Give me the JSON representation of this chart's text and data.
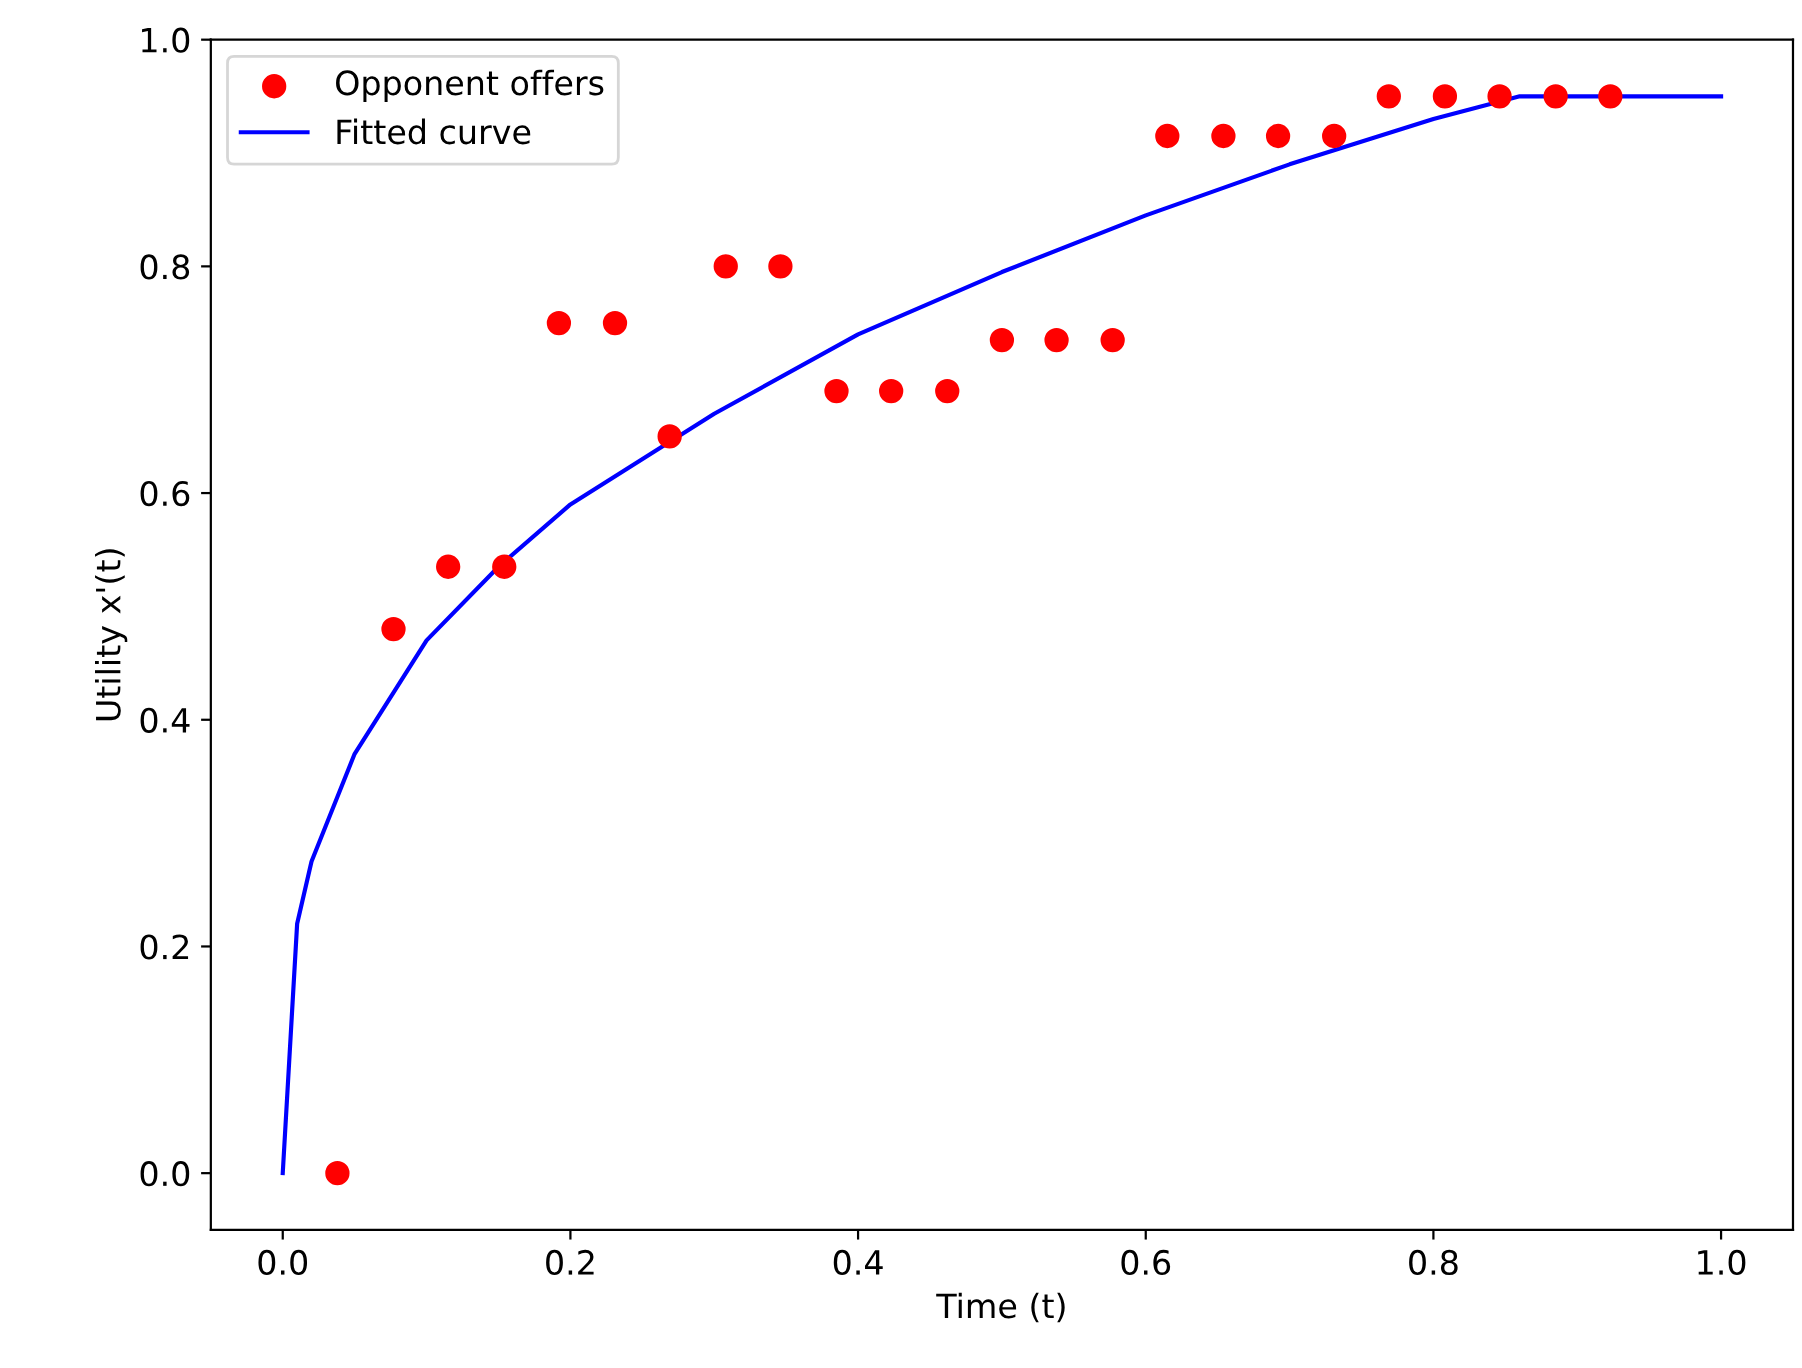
{
  "chart_data": {
    "type": "scatter",
    "xlabel": "Time (t)",
    "ylabel": "Utility x'(t)",
    "xlim": [
      -0.05,
      1.05
    ],
    "ylim": [
      -0.05,
      1.0
    ],
    "xticks": [
      {
        "value": 0,
        "label": "0.0"
      },
      0.2,
      0.4,
      0.6,
      0.8,
      {
        "value": 1,
        "label": "1.0"
      }
    ],
    "yticks": [
      {
        "value": 0,
        "label": "0.0"
      },
      0.2,
      0.4,
      0.6,
      0.8,
      {
        "value": 1,
        "label": "1.0"
      }
    ],
    "grid": false,
    "legend": "top left",
    "series": [
      {
        "name": "Opponent offers",
        "color": "#ff0000",
        "marker": "circle",
        "x": [
          0.038,
          0.077,
          0.115,
          0.154,
          0.192,
          0.231,
          0.269,
          0.308,
          0.346,
          0.385,
          0.423,
          0.462,
          0.5,
          0.538,
          0.577,
          0.615,
          0.654,
          0.692,
          0.731,
          0.769,
          0.808,
          0.846,
          0.885,
          0.923
        ],
        "values": [
          0.0,
          0.48,
          0.535,
          0.535,
          0.75,
          0.75,
          0.65,
          0.8,
          0.8,
          0.69,
          0.69,
          0.69,
          0.735,
          0.735,
          0.735,
          0.915,
          0.915,
          0.915,
          0.915,
          0.95,
          0.95,
          0.95,
          0.95,
          0.95
        ]
      },
      {
        "name": "Fitted curve",
        "type": "line",
        "color": "#0000ff",
        "marker": "none",
        "line_style": "solid",
        "x": [
          0,
          0.01,
          0.02,
          0.05,
          0.1,
          0.15,
          0.2,
          0.3,
          0.4,
          0.5,
          0.6,
          0.7,
          0.8,
          0.86,
          0.9,
          1.0
        ],
        "values": [
          0,
          0.22,
          0.275,
          0.37,
          0.47,
          0.535,
          0.59,
          0.67,
          0.74,
          0.795,
          0.845,
          0.89,
          0.93,
          0.95,
          0.95,
          0.95
        ]
      }
    ]
  }
}
